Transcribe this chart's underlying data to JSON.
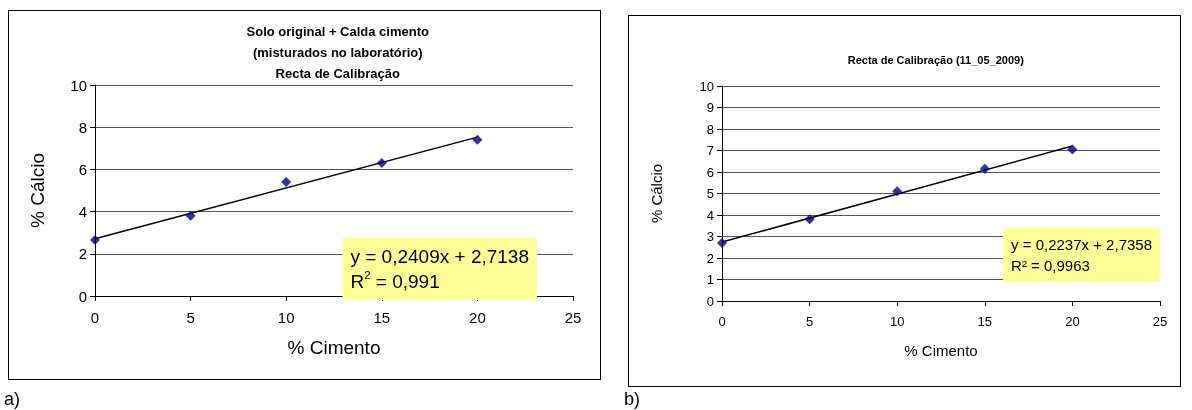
{
  "chart_data": [
    {
      "type": "scatter",
      "title": "Solo original + Calda cimento\n(misturados no laboratório)\nRecta de Calibração",
      "xlabel": "% Cimento",
      "ylabel": "% Cálcio",
      "xlim": [
        0,
        25
      ],
      "xticks": [
        0,
        5,
        10,
        15,
        20,
        25
      ],
      "ylim": [
        0,
        10
      ],
      "yticks": [
        0,
        2,
        4,
        6,
        8,
        10
      ],
      "grid": "y",
      "marker": "diamond",
      "series": [
        {
          "color": "#000080",
          "x": [
            0,
            5,
            10,
            15,
            20
          ],
          "values": [
            2.65,
            3.8,
            5.4,
            6.3,
            7.4
          ]
        },
        {
          "type": "line",
          "color": "#000000",
          "marker": "none",
          "x": [
            0,
            20
          ],
          "values": [
            2.71,
            7.53
          ]
        }
      ],
      "annotations": [
        "y = 0,2409x + 2,7138",
        "R$^{2}$ = 0,991",
        "a)"
      ]
    },
    {
      "type": "scatter",
      "title": "Recta de Calibração (11_05_2009)",
      "xlabel": "% Cimento",
      "ylabel": "% Cálcio",
      "xlim": [
        0,
        25
      ],
      "xticks": [
        0,
        5,
        10,
        15,
        20,
        25
      ],
      "ylim": [
        0,
        10
      ],
      "yticks": [
        0,
        1,
        2,
        3,
        4,
        5,
        6,
        7,
        8,
        9,
        10
      ],
      "grid": "y",
      "marker": "diamond",
      "series": [
        {
          "color": "#000080",
          "x": [
            0,
            5,
            10,
            15,
            20
          ],
          "values": [
            2.7,
            3.8,
            5.1,
            6.15,
            7.05
          ]
        },
        {
          "type": "line",
          "color": "#000000",
          "marker": "none",
          "x": [
            0,
            20
          ],
          "values": [
            2.74,
            7.21
          ]
        }
      ],
      "annotations": [
        "y = 0,2237x + 2,7358",
        "R² = 0,9963",
        "b)"
      ]
    }
  ]
}
